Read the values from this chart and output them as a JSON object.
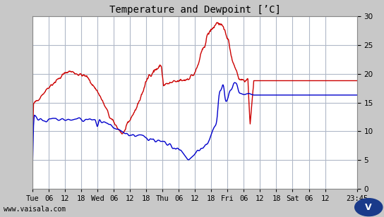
{
  "title": "Temperature and Dewpoint [’C]",
  "bg_color": "#c8c8c8",
  "plot_bg_color": "#ffffff",
  "grid_color": "#b0b8c8",
  "temp_color": "#cc0000",
  "dewp_color": "#0000cc",
  "ylim": [
    0,
    30
  ],
  "yticks": [
    0,
    5,
    10,
    15,
    20,
    25,
    30
  ],
  "xlabel_ticks": [
    "Tue",
    "06",
    "12",
    "18",
    "Wed",
    "06",
    "12",
    "18",
    "Thu",
    "06",
    "12",
    "18",
    "Fri",
    "06",
    "12",
    "18",
    "Sat",
    "06",
    "12",
    "23:45"
  ],
  "watermark": "www.vaisala.com",
  "line_width": 1.0,
  "title_fontsize": 10,
  "tick_fontsize": 7.5,
  "watermark_fontsize": 7
}
